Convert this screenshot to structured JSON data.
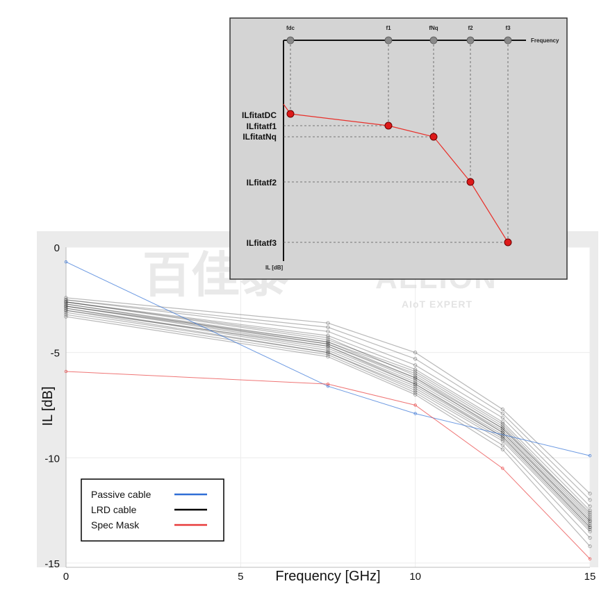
{
  "chart_data": [
    {
      "type": "line",
      "title": "",
      "xlabel": "Frequency [GHz]",
      "ylabel": "IL [dB]",
      "xlim": [
        0,
        15
      ],
      "ylim": [
        -15.2,
        0
      ],
      "xticks": [
        0,
        5,
        10,
        15
      ],
      "yticks": [
        0,
        -5,
        -10,
        -15
      ],
      "grid": true,
      "legend_position": "bottom-left",
      "series": [
        {
          "name": "Passive cable",
          "color": "#2f6fd6",
          "x": [
            0,
            7.5,
            10,
            15
          ],
          "y": [
            -0.7,
            -6.6,
            -7.9,
            -9.9
          ]
        },
        {
          "name": "LRD cable",
          "color": "#000000",
          "x": [
            0,
            7.5,
            10,
            12.5,
            15
          ],
          "y": [
            -2.7,
            -4.6,
            -6.2,
            -8.7,
            -13.0
          ]
        },
        {
          "name": "Spec Mask",
          "color": "#e83a3a",
          "x": [
            0,
            7.5,
            10,
            12.5,
            15
          ],
          "y": [
            -5.9,
            -6.5,
            -7.5,
            -10.5,
            -14.8
          ]
        }
      ],
      "lrd_traces": [
        [
          -2.4,
          -3.6,
          -5.0,
          -7.7,
          -11.7
        ],
        [
          -2.5,
          -3.8,
          -5.3,
          -7.9,
          -12.0
        ],
        [
          -2.5,
          -4.0,
          -5.6,
          -8.1,
          -12.3
        ],
        [
          -2.6,
          -4.2,
          -5.8,
          -8.3,
          -12.5
        ],
        [
          -2.6,
          -4.4,
          -5.9,
          -8.4,
          -12.7
        ],
        [
          -2.7,
          -4.5,
          -6.0,
          -8.5,
          -12.8
        ],
        [
          -2.7,
          -4.6,
          -6.2,
          -8.6,
          -12.9
        ],
        [
          -2.8,
          -4.6,
          -6.3,
          -8.7,
          -13.0
        ],
        [
          -2.8,
          -4.7,
          -6.4,
          -8.8,
          -13.1
        ],
        [
          -2.9,
          -4.8,
          -6.5,
          -8.9,
          -13.2
        ],
        [
          -2.9,
          -4.9,
          -6.6,
          -9.0,
          -13.3
        ],
        [
          -3.0,
          -5.0,
          -6.7,
          -9.1,
          -13.4
        ],
        [
          -3.1,
          -5.0,
          -6.8,
          -9.2,
          -13.5
        ],
        [
          -3.2,
          -5.1,
          -6.9,
          -9.4,
          -13.8
        ],
        [
          -3.3,
          -5.2,
          -7.0,
          -9.6,
          -14.2
        ],
        [
          -2.6,
          -4.3,
          -6.1,
          -8.6,
          -12.6
        ],
        [
          -2.8,
          -4.5,
          -6.2,
          -8.8,
          -13.0
        ],
        [
          -3.0,
          -4.7,
          -6.5,
          -9.0,
          -13.3
        ]
      ]
    },
    {
      "type": "diagram",
      "title": "",
      "x_axis_label": "Frequency",
      "y_axis_label": "IL [dB]",
      "frequency_points": [
        "fdc",
        "f1",
        "fNq",
        "f2",
        "f3"
      ],
      "il_labels": [
        "ILfitatDC",
        "ILfitatf1",
        "ILfitatNq",
        "ILfitatf2",
        "ILfitatf3"
      ],
      "curve_color": "#e8302a",
      "marker_color": "#dd1a1a"
    }
  ],
  "watermark": {
    "cn": "百佳泰",
    "en": "ALLION",
    "sub": "AIoT EXPERT"
  },
  "colors": {
    "plot_frame": "#e9e9e9",
    "inset_bg": "#d4d4d4",
    "grid": "#ececec"
  }
}
